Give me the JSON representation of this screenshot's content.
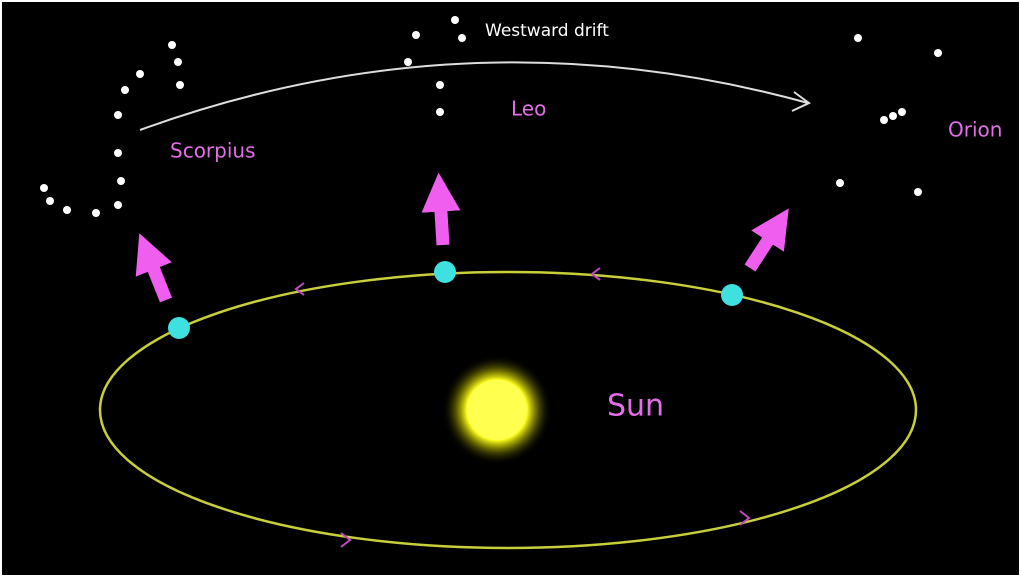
{
  "annotation": "Westward drift",
  "constellations": [
    {
      "label": "Scorpius"
    },
    {
      "label": "Leo"
    },
    {
      "label": "Orion"
    }
  ],
  "sun": {
    "label": "Sun"
  }
}
